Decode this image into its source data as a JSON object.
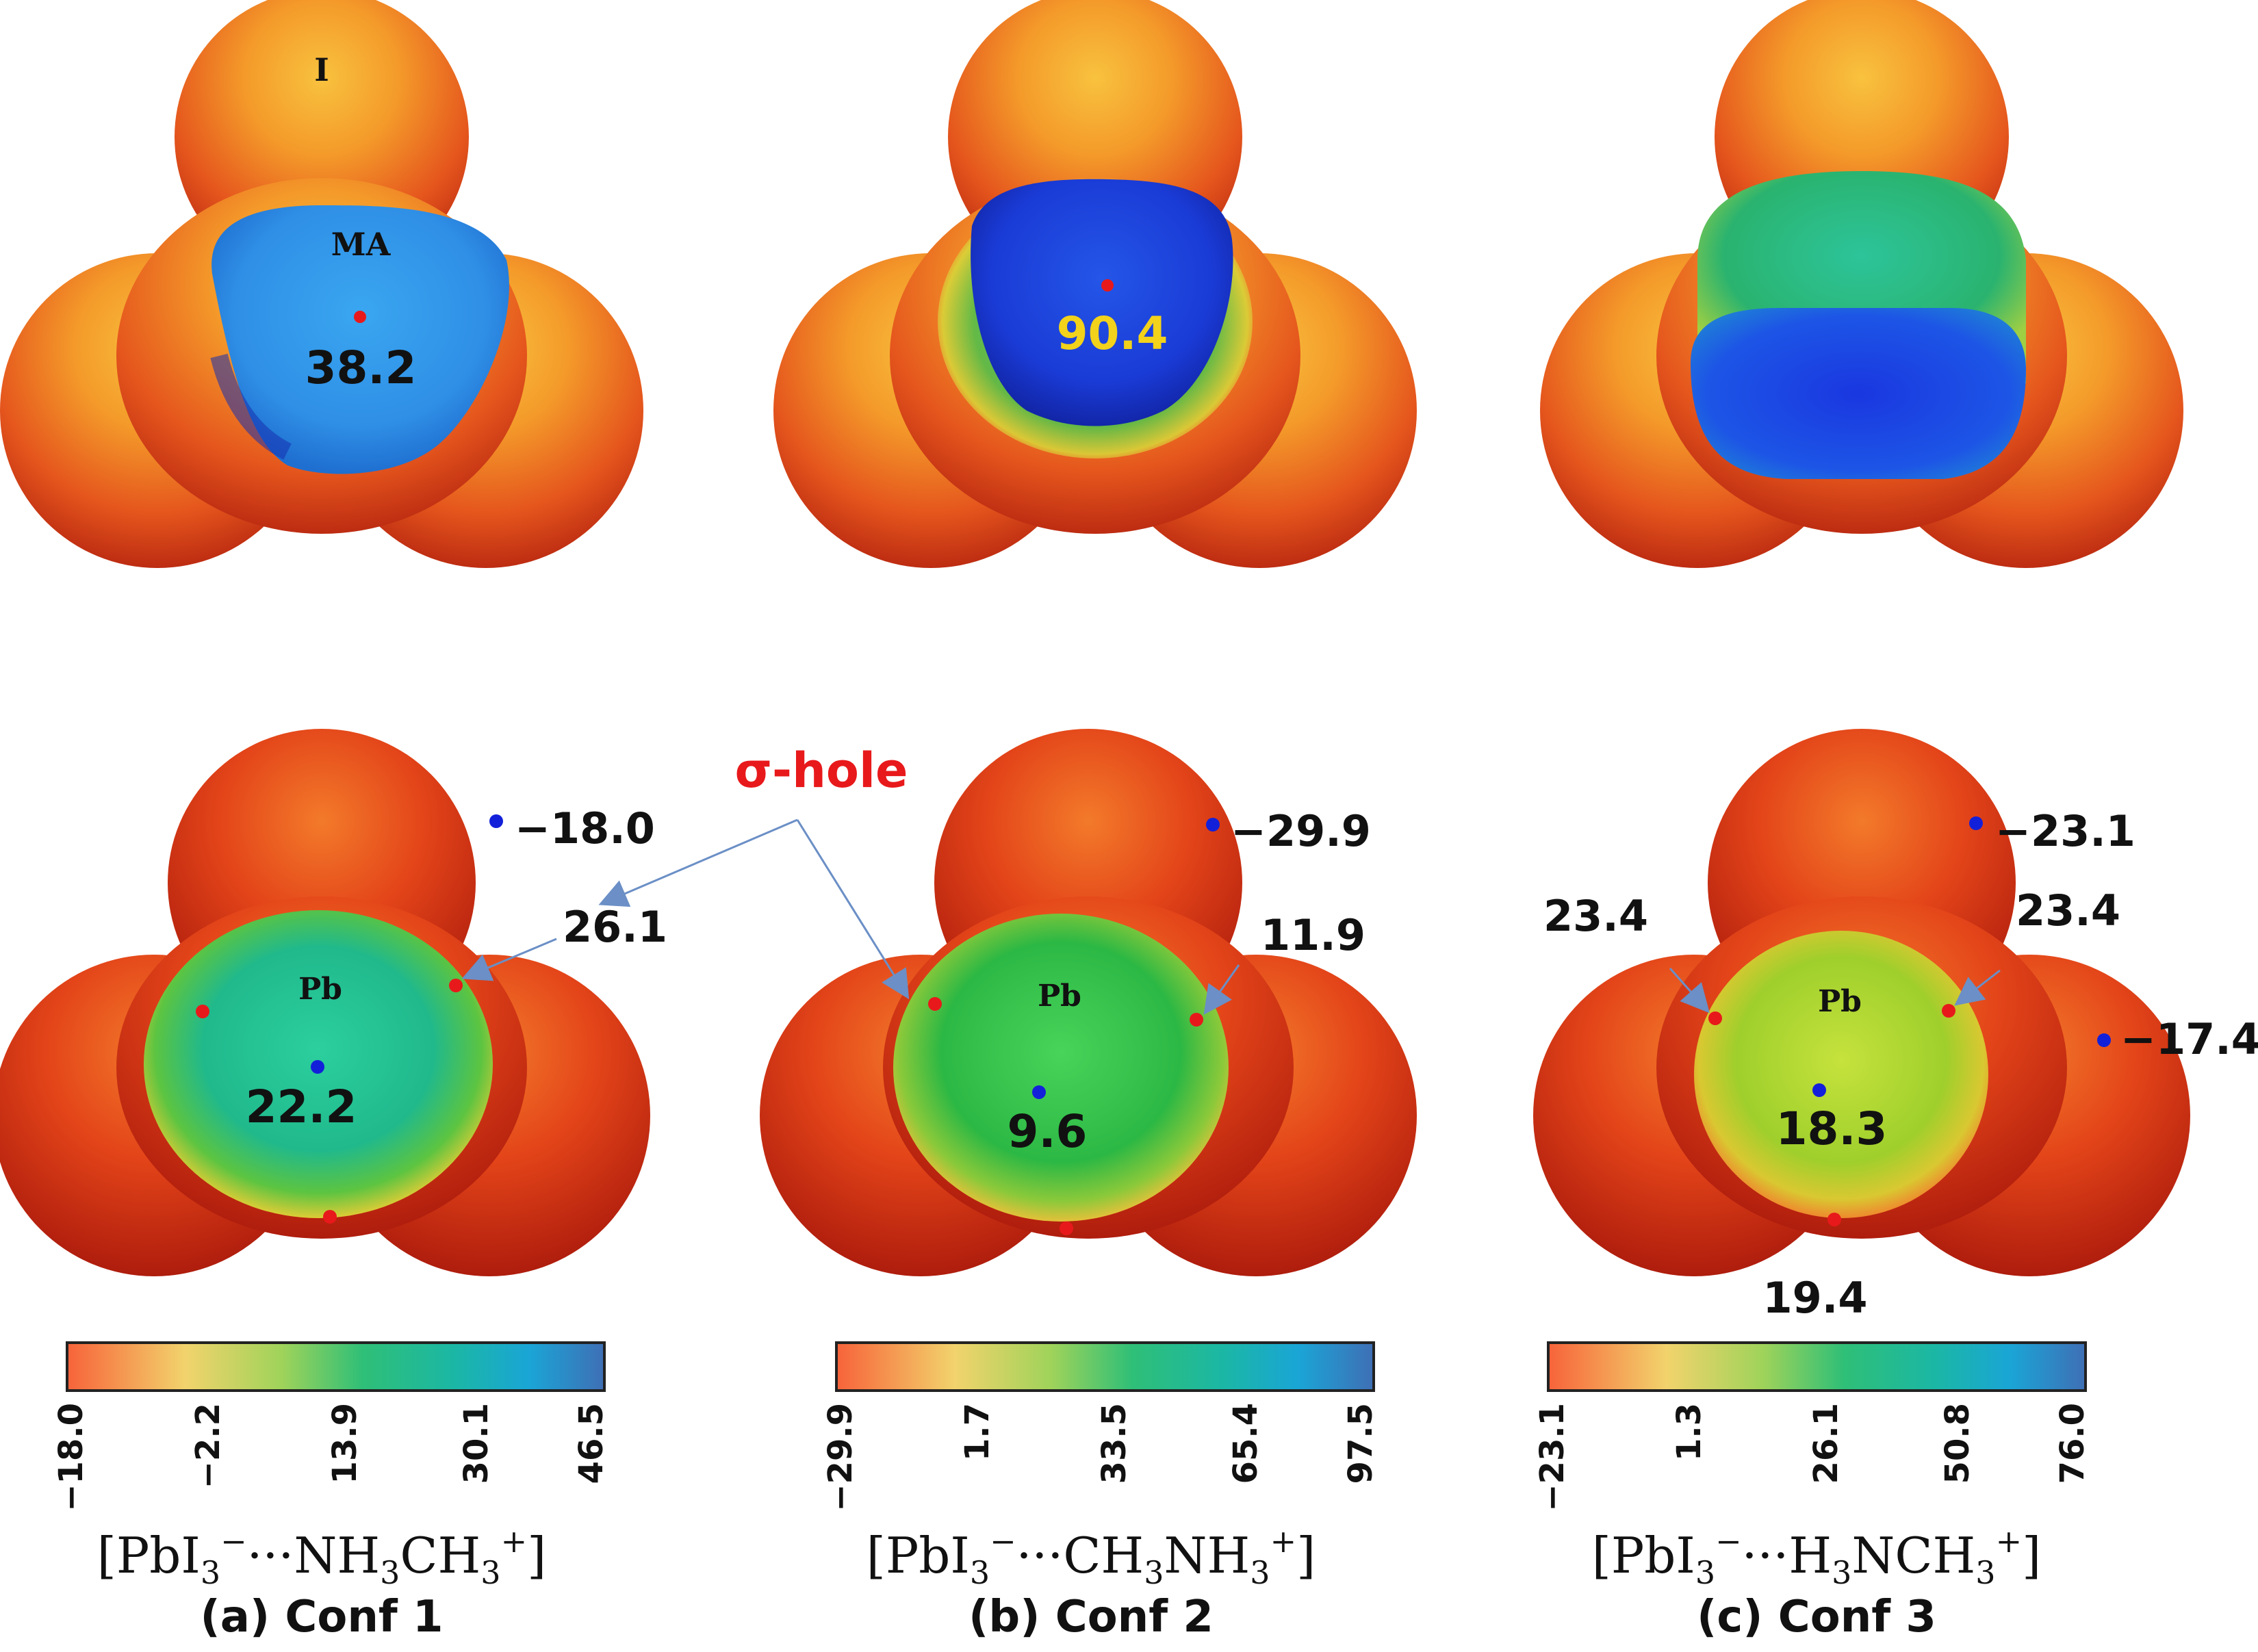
{
  "colors": {
    "scale": [
      "#f7633a",
      "#f4a35a",
      "#f2d36c",
      "#9fd35a",
      "#2fbf77",
      "#1bb7a5",
      "#1aa5d6",
      "#3f6fb5"
    ],
    "point_positive": "#e8191b",
    "point_negative": "#1320d9",
    "sigma_hole": "#e8191b",
    "arrow": "#6b8fc6",
    "value_highlight": "#f2d21a"
  },
  "labels": {
    "iodine": "I",
    "methylammonium": "MA",
    "lead_a": "Pb",
    "lead_b": "Pb",
    "lead_c": "Pb",
    "sigma_hole": "σ-hole"
  },
  "values": {
    "top_a_ma": "38.2",
    "top_b_ma": "90.4",
    "a_negative": "−18.0",
    "a_sigma": "26.1",
    "a_center": "22.2",
    "b_negative": "−29.9",
    "b_sigma": "11.9",
    "b_center": "9.6",
    "c_negative_top": "−23.1",
    "c_sigma_left": "23.4",
    "c_sigma_right": "23.4",
    "c_negative_right": "−17.4",
    "c_center": "18.3",
    "c_bottom": "19.4"
  },
  "colorbars": [
    {
      "ticks": [
        "−18.0",
        "−2.2",
        "13.9",
        "30.1",
        "46.5"
      ],
      "formula": {
        "pre": "[PbI",
        "s1": "3",
        "sup1": "−",
        "mid": "···NH",
        "s2": "3",
        "mid2": "CH",
        "s3": "3",
        "sup2": "+",
        "post": "]"
      },
      "caption": "(a) Conf 1"
    },
    {
      "ticks": [
        "−29.9",
        "1.7",
        "33.5",
        "65.4",
        "97.5"
      ],
      "formula": {
        "pre": "[PbI",
        "s1": "3",
        "sup1": "−",
        "mid": "···CH",
        "s2": "3",
        "mid2": "NH",
        "s3": "3",
        "sup2": "+",
        "post": "]"
      },
      "caption": "(b) Conf 2"
    },
    {
      "ticks": [
        "−23.1",
        "1.3",
        "26.1",
        "50.8",
        "76.0"
      ],
      "formula": {
        "pre": "[PbI",
        "s1": "3",
        "sup1": "−",
        "mid": "···H",
        "s2": "3",
        "mid2": "NCH",
        "s3": "3",
        "sup2": "+",
        "post": "]"
      },
      "caption": "(c) Conf 3"
    }
  ]
}
